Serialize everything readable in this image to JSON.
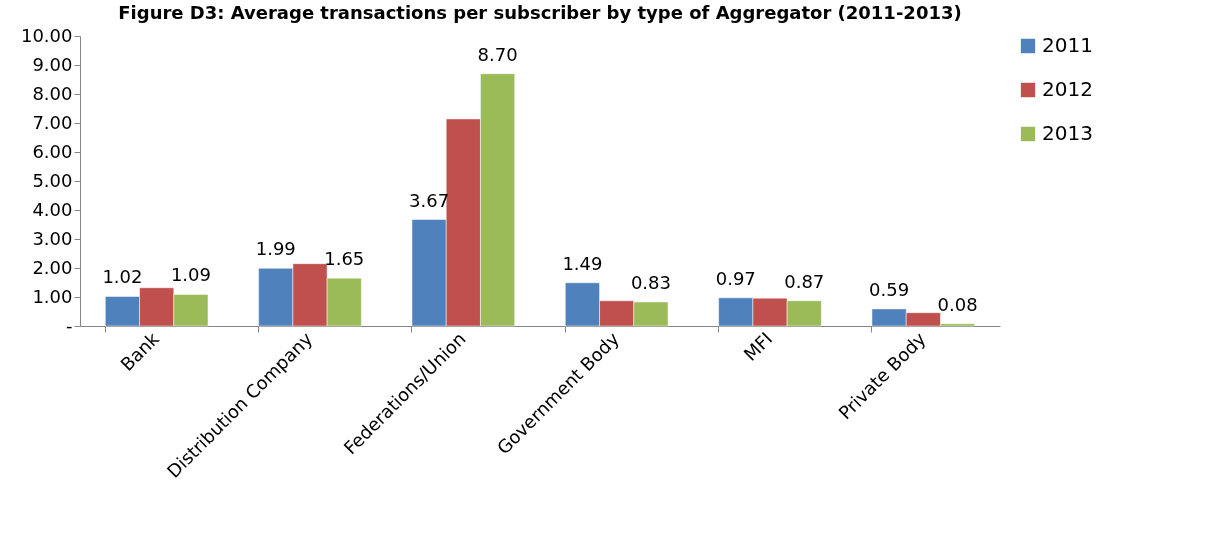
{
  "chart_data": {
    "type": "bar",
    "title": "Figure D3: Average transactions per subscriber by type of Aggregator (2011-2013)",
    "categories": [
      "Bank",
      "Distribution Company",
      "Federations/Union",
      "Government Body",
      "MFI",
      "Private Body"
    ],
    "series": [
      {
        "name": "2011",
        "color": "#4f81bd",
        "values": [
          1.02,
          1.99,
          3.67,
          1.49,
          0.97,
          0.59
        ],
        "value_labels": [
          "1.02",
          "1.99",
          "3.67",
          "1.49",
          "0.97",
          "0.59"
        ]
      },
      {
        "name": "2012",
        "color": "#c0504d",
        "values": [
          1.32,
          2.15,
          7.14,
          0.87,
          0.96,
          0.46
        ]
      },
      {
        "name": "2013",
        "color": "#9bbb59",
        "values": [
          1.09,
          1.65,
          8.7,
          0.83,
          0.87,
          0.08
        ],
        "value_labels": [
          "1.09",
          "1.65",
          "8.70",
          "0.83",
          "0.87",
          "0.08"
        ]
      }
    ],
    "ylim": [
      0,
      10
    ],
    "yticks": [
      {
        "value": 0,
        "label": "-"
      },
      {
        "value": 1,
        "label": "1.00"
      },
      {
        "value": 2,
        "label": "2.00"
      },
      {
        "value": 3,
        "label": "3.00"
      },
      {
        "value": 4,
        "label": "4.00"
      },
      {
        "value": 5,
        "label": "5.00"
      },
      {
        "value": 6,
        "label": "6.00"
      },
      {
        "value": 7,
        "label": "7.00"
      },
      {
        "value": 8,
        "label": "8.00"
      },
      {
        "value": 9,
        "label": "9.00"
      },
      {
        "value": 10,
        "label": "10.00"
      }
    ],
    "grid": false,
    "legend": "right"
  }
}
